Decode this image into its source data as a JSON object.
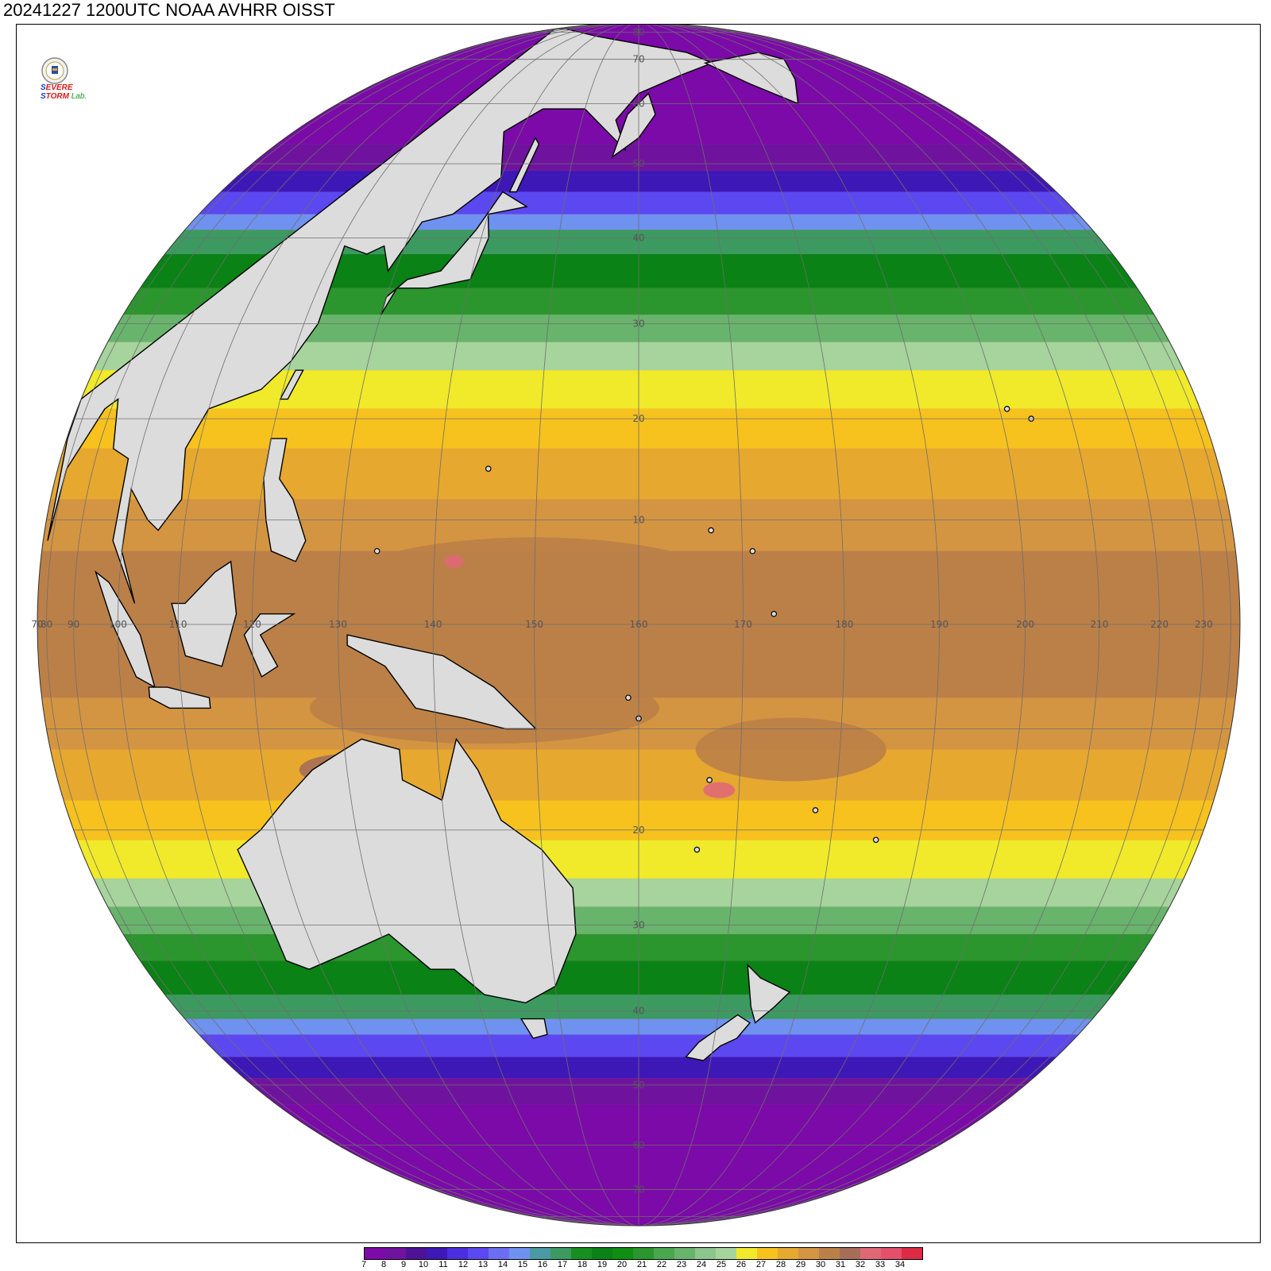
{
  "title": "20241227 1200UTC NOAA AVHRR OISST",
  "logo": {
    "emblem": "lab-seal-icon",
    "text_parts": [
      "S",
      "EVERE",
      "S",
      "TORM",
      "Lab."
    ]
  },
  "colors": {
    "land": "#dcdcdc",
    "coastline": "#000000",
    "gridline": "#6e6e6e",
    "background": "#ffffff"
  },
  "colorbar": {
    "labels": [
      "7",
      "8",
      "9",
      "10",
      "11",
      "12",
      "13",
      "14",
      "15",
      "16",
      "17",
      "18",
      "19",
      "20",
      "21",
      "22",
      "23",
      "24",
      "25",
      "26",
      "27",
      "28",
      "29",
      "30",
      "31",
      "32",
      "33",
      "34"
    ],
    "colors": [
      "#7b0aa8",
      "#6f139e",
      "#4d1296",
      "#3e18b6",
      "#4b2ee0",
      "#5b48f0",
      "#6b6ef2",
      "#6f92f0",
      "#4a9aa4",
      "#3c9a60",
      "#178f20",
      "#0a8216",
      "#0f8e12",
      "#2b962e",
      "#4aa64f",
      "#68b46c",
      "#8cc58d",
      "#a6d49c",
      "#f0ea2a",
      "#f7c21e",
      "#e6a82f",
      "#d49542",
      "#bb8048",
      "#a66e58",
      "#e06876",
      "#e54f6a",
      "#dd2a45"
    ]
  },
  "map": {
    "projection": "orthographic",
    "center_lon": 160,
    "center_lat": 0,
    "lon_labels": [
      "70",
      "80",
      "90",
      "100",
      "110",
      "120",
      "130",
      "140",
      "150",
      "160",
      "170",
      "180",
      "190",
      "200",
      "210",
      "220",
      "230"
    ],
    "lat_labels": [
      "80",
      "70",
      "60",
      "50",
      "40",
      "30",
      "20",
      "10",
      "20",
      "30",
      "40",
      "50",
      "60",
      "70"
    ]
  }
}
